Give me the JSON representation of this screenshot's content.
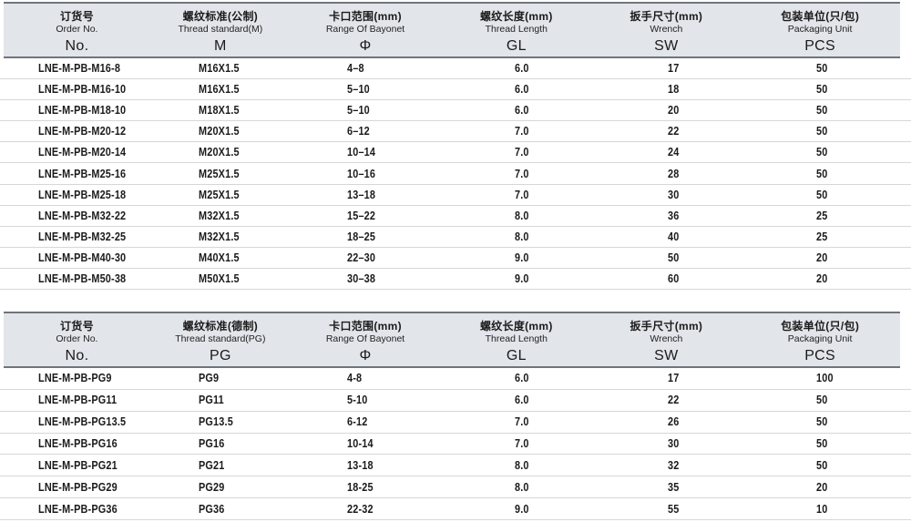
{
  "colors": {
    "header_bg": "#e2e5ea",
    "header_border": "#70757c",
    "row_divider": "#d7d7d7",
    "text": "#1b1b1b"
  },
  "tables": [
    {
      "name": "metric",
      "columns": [
        {
          "cn": "订货号",
          "en": "Order No.",
          "code": "No."
        },
        {
          "cn": "螺纹标准(公制)",
          "en": "Thread standard(M)",
          "code": "M"
        },
        {
          "cn": "卡口范围(mm)",
          "en": "Range Of Bayonet",
          "code": "Φ"
        },
        {
          "cn": "螺纹长度(mm)",
          "en": "Thread Length",
          "code": "GL"
        },
        {
          "cn": "扳手尺寸(mm)",
          "en": "Wrench",
          "code": "SW"
        },
        {
          "cn": "包装单位(只/包)",
          "en": "Packaging Unit",
          "code": "PCS"
        }
      ],
      "rows": [
        [
          "LNE-M-PB-M16-8",
          "M16X1.5",
          "4–8",
          "6.0",
          "17",
          "50"
        ],
        [
          "LNE-M-PB-M16-10",
          "M16X1.5",
          "5–10",
          "6.0",
          "18",
          "50"
        ],
        [
          "LNE-M-PB-M18-10",
          "M18X1.5",
          "5–10",
          "6.0",
          "20",
          "50"
        ],
        [
          "LNE-M-PB-M20-12",
          "M20X1.5",
          "6–12",
          "7.0",
          "22",
          "50"
        ],
        [
          "LNE-M-PB-M20-14",
          "M20X1.5",
          "10–14",
          "7.0",
          "24",
          "50"
        ],
        [
          "LNE-M-PB-M25-16",
          "M25X1.5",
          "10–16",
          "7.0",
          "28",
          "50"
        ],
        [
          "LNE-M-PB-M25-18",
          "M25X1.5",
          "13–18",
          "7.0",
          "30",
          "50"
        ],
        [
          "LNE-M-PB-M32-22",
          "M32X1.5",
          "15–22",
          "8.0",
          "36",
          "25"
        ],
        [
          "LNE-M-PB-M32-25",
          "M32X1.5",
          "18–25",
          "8.0",
          "40",
          "25"
        ],
        [
          "LNE-M-PB-M40-30",
          "M40X1.5",
          "22–30",
          "9.0",
          "50",
          "20"
        ],
        [
          "LNE-M-PB-M50-38",
          "M50X1.5",
          "30–38",
          "9.0",
          "60",
          "20"
        ]
      ]
    },
    {
      "name": "pg",
      "columns": [
        {
          "cn": "订货号",
          "en": "Order No.",
          "code": "No."
        },
        {
          "cn": "螺纹标准(德制)",
          "en": "Thread standard(PG)",
          "code": "PG"
        },
        {
          "cn": "卡口范围(mm)",
          "en": "Range Of Bayonet",
          "code": "Φ"
        },
        {
          "cn": "螺纹长度(mm)",
          "en": "Thread Length",
          "code": "GL"
        },
        {
          "cn": "扳手尺寸(mm)",
          "en": "Wrench",
          "code": "SW"
        },
        {
          "cn": "包装单位(只/包)",
          "en": "Packaging Unit",
          "code": "PCS"
        }
      ],
      "rows": [
        [
          "LNE-M-PB-PG9",
          "PG9",
          "4-8",
          "6.0",
          "17",
          "100"
        ],
        [
          "LNE-M-PB-PG11",
          "PG11",
          "5-10",
          "6.0",
          "22",
          "50"
        ],
        [
          "LNE-M-PB-PG13.5",
          "PG13.5",
          "6-12",
          "7.0",
          "26",
          "50"
        ],
        [
          "LNE-M-PB-PG16",
          "PG16",
          "10-14",
          "7.0",
          "30",
          "50"
        ],
        [
          "LNE-M-PB-PG21",
          "PG21",
          "13-18",
          "8.0",
          "32",
          "50"
        ],
        [
          "LNE-M-PB-PG29",
          "PG29",
          "18-25",
          "8.0",
          "35",
          "20"
        ],
        [
          "LNE-M-PB-PG36",
          "PG36",
          "22-32",
          "9.0",
          "55",
          "10"
        ]
      ]
    }
  ]
}
